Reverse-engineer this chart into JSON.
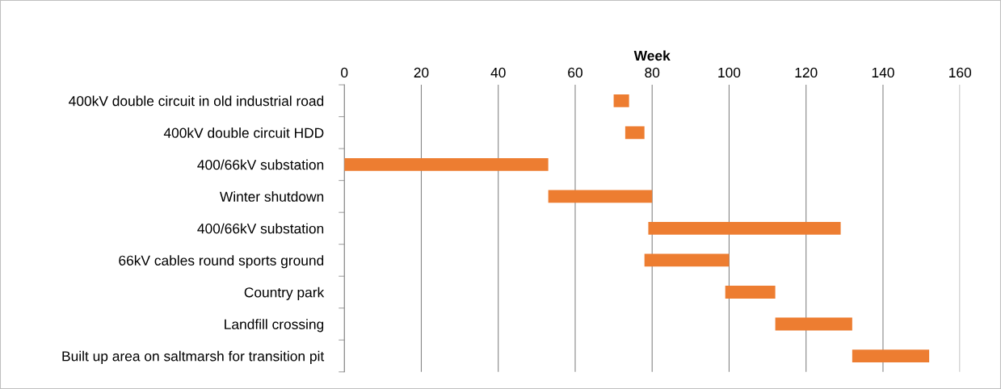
{
  "chart_data": {
    "type": "bar",
    "orientation": "horizontal",
    "xlabel": "Week",
    "categories": [
      "400kV double circuit in old industrial road",
      "400kV double circuit HDD",
      "400/66kV substation",
      "Winter shutdown",
      "400/66kV substation",
      "66kV cables round sports ground",
      "Country park",
      "Landfill crossing",
      "Built up area on saltmarsh for transition pit"
    ],
    "base": [
      70,
      73,
      0,
      53,
      79,
      78,
      99,
      112,
      132
    ],
    "values": [
      4,
      5,
      53,
      27,
      50,
      22,
      13,
      20,
      20
    ],
    "color": "#ed7d31",
    "xlim": [
      0,
      160
    ],
    "xticks": [
      0,
      20,
      40,
      60,
      80,
      100,
      120,
      140,
      160
    ],
    "grid": "x",
    "legend": false
  }
}
